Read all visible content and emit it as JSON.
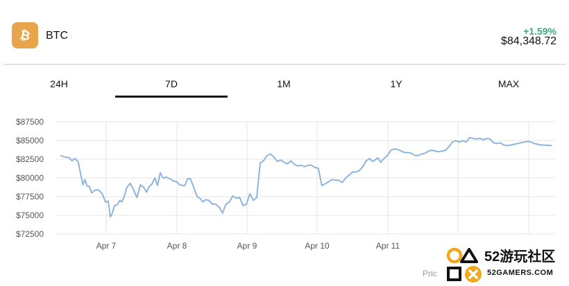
{
  "header": {
    "coin_icon": "bitcoin-icon",
    "coin_name": "BTC",
    "change": "+1.59%",
    "price": "$84,348.72",
    "accent_color": "#e8a54b",
    "change_color": "#3faa74"
  },
  "tabs": [
    {
      "label": "24H",
      "active": false
    },
    {
      "label": "7D",
      "active": true
    },
    {
      "label": "1M",
      "active": false
    },
    {
      "label": "1Y",
      "active": false
    },
    {
      "label": "MAX",
      "active": false
    }
  ],
  "chart_data": {
    "type": "line",
    "title": "",
    "xlabel": "",
    "ylabel": "",
    "ylim": [
      72500,
      87500
    ],
    "y_ticks": [
      "$87500",
      "$85000",
      "$82500",
      "$80000",
      "$77500",
      "$75000",
      "$72500"
    ],
    "y_tick_values": [
      87500,
      85000,
      82500,
      80000,
      77500,
      75000,
      72500
    ],
    "x_ticks": [
      "Apr 7",
      "Apr 8",
      "Apr 9",
      "Apr 10",
      "Apr 11"
    ],
    "x_tick_days": [
      1,
      2,
      3,
      4,
      5
    ],
    "grid": true,
    "line_color": "#8fb4dc",
    "series": [
      {
        "x": [
          0.0,
          0.07,
          0.13,
          0.17,
          0.21,
          0.26,
          0.29,
          0.33,
          0.36,
          0.39,
          0.42,
          0.46,
          0.51,
          0.56,
          0.61,
          0.66,
          0.7,
          0.73,
          0.76,
          0.79,
          0.83,
          0.87,
          0.9,
          0.93,
          0.97,
          1.02,
          1.07,
          1.12,
          1.17,
          1.22,
          1.26,
          1.3,
          1.34,
          1.38,
          1.42,
          1.46,
          1.5,
          1.55,
          1.6,
          1.65,
          1.7,
          1.74,
          1.78,
          1.82,
          1.86,
          1.9,
          1.95,
          2.0,
          2.04,
          2.08,
          2.12,
          2.17,
          2.22,
          2.27,
          2.32,
          2.37,
          2.42,
          2.47,
          2.52,
          2.57,
          2.62,
          2.67,
          2.72,
          2.77,
          2.82,
          2.87,
          2.92,
          2.97,
          3.02,
          3.07,
          3.12,
          3.17,
          3.22,
          3.27,
          3.32,
          3.37,
          3.42,
          3.47,
          3.52,
          3.57,
          3.62,
          3.67,
          3.72,
          3.77,
          3.82,
          3.87,
          3.92,
          3.97,
          4.02,
          4.07,
          4.12,
          4.17,
          4.22,
          4.27,
          4.32,
          4.37,
          4.42,
          4.47,
          4.52,
          4.56,
          4.6,
          4.64,
          4.68,
          4.73,
          4.78,
          4.83,
          4.88,
          4.93,
          4.98,
          5.03,
          5.08,
          5.13,
          5.18,
          5.23,
          5.28,
          5.33,
          5.38,
          5.43,
          5.48,
          5.53,
          5.58,
          5.63,
          5.68,
          5.73,
          5.78,
          5.83,
          5.88,
          5.93,
          5.98,
          6.03,
          6.08,
          6.13,
          6.18,
          6.23,
          6.28,
          6.33,
          6.38,
          6.43,
          6.48,
          6.53,
          6.58,
          6.63,
          6.68,
          6.73,
          6.78,
          6.83,
          6.88,
          6.93,
          6.98,
          7.03,
          7.08,
          7.13,
          7.18
        ],
        "values": [
          83000,
          82800,
          82700,
          82300,
          82600,
          82200,
          80800,
          79100,
          79800,
          78900,
          78900,
          78000,
          78400,
          78400,
          77900,
          76800,
          76900,
          74800,
          75300,
          76300,
          76400,
          77000,
          76800,
          77400,
          78700,
          79300,
          78400,
          77400,
          79100,
          78700,
          78100,
          78900,
          79200,
          80000,
          79000,
          80700,
          80000,
          80100,
          79900,
          79600,
          79500,
          79100,
          79000,
          79000,
          79900,
          79900,
          78700,
          77500,
          77300,
          76800,
          77100,
          77000,
          76500,
          76500,
          76100,
          75300,
          76500,
          76800,
          77600,
          77300,
          77400,
          76300,
          76500,
          77900,
          77000,
          77400,
          82000,
          82300,
          83000,
          83200,
          82800,
          82200,
          82400,
          82100,
          81900,
          82300,
          81800,
          81600,
          81700,
          81500,
          81700,
          81700,
          81400,
          81300,
          79000,
          79200,
          79500,
          79800,
          79700,
          79700,
          79400,
          80000,
          80400,
          80800,
          80800,
          81000,
          81500,
          82300,
          82600,
          82200,
          82400,
          82700,
          82100,
          82600,
          83000,
          83700,
          83900,
          83800,
          83600,
          83400,
          83400,
          83300,
          83000,
          83000,
          83200,
          83300,
          83600,
          83700,
          83600,
          83500,
          83600,
          83700,
          84200,
          84800,
          85000,
          84800,
          85000,
          84800,
          85400,
          85300,
          85200,
          85300,
          85100,
          85300,
          85200,
          84700,
          84600,
          84700,
          84400,
          84350,
          84400,
          84500,
          84600,
          84700,
          84800,
          84900,
          84800,
          84600,
          84500,
          84400,
          84400,
          84350,
          84349
        ]
      }
    ]
  },
  "footer": {
    "text": "Pric"
  },
  "watermark": {
    "title": "52游玩社区",
    "subtitle": "52GAMERS.COM"
  }
}
